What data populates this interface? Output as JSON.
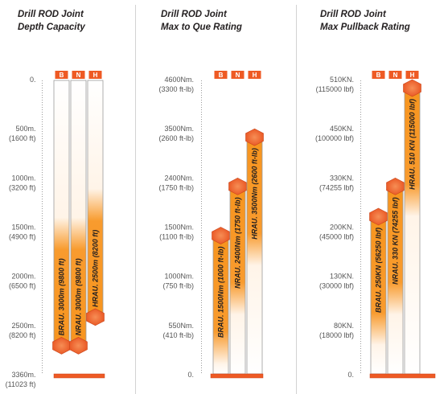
{
  "chart_data": [
    {
      "type": "bar",
      "title": "Drill ROD Joint",
      "subtitle": "Depth Capacity",
      "y_inverted": true,
      "categories": [
        "B",
        "N",
        "H"
      ],
      "values": [
        3000,
        3000,
        2500
      ],
      "bar_labels": [
        "BRAU. 3000m (9800 ft)",
        "NRAU. 3000m (9800 ft)",
        "HRAU. 2500m (8200 ft)"
      ],
      "ylim": [
        0,
        3360
      ],
      "grid": false,
      "y_ticks": [
        {
          "value": 0,
          "label": "0."
        },
        {
          "value": 500,
          "label": "500m.",
          "sublabel": "(1600 ft)"
        },
        {
          "value": 1000,
          "label": "1000m.",
          "sublabel": "(3200 ft)"
        },
        {
          "value": 1500,
          "label": "1500m.",
          "sublabel": "(4900 ft)"
        },
        {
          "value": 2000,
          "label": "2000m.",
          "sublabel": "(6500 ft)"
        },
        {
          "value": 2500,
          "label": "2500m.",
          "sublabel": "(8200 ft)"
        },
        {
          "value": 3360,
          "label": "3360m.",
          "sublabel": "(11023 ft)"
        }
      ]
    },
    {
      "type": "bar",
      "title": "Drill ROD Joint",
      "subtitle": "Max to Que Rating",
      "y_inverted": false,
      "categories": [
        "B",
        "N",
        "H"
      ],
      "values": [
        1500,
        2400,
        3500
      ],
      "bar_labels": [
        "BRAU. 1500Nm (1000 ft-lb)",
        "NRAU. 2400Nm (1750 ft-lb)",
        "HRAU. 3500Nm (2600 ft-lb)"
      ],
      "ylim": [
        0,
        4600
      ],
      "grid": false,
      "y_ticks": [
        {
          "value": 0,
          "label": "0."
        },
        {
          "value": 550,
          "label": "550Nm.",
          "sublabel": "(410 ft-lb)"
        },
        {
          "value": 1000,
          "label": "1000Nm.",
          "sublabel": "(750 ft-lb)"
        },
        {
          "value": 1500,
          "label": "1500Nm.",
          "sublabel": "(1100 ft-lb)"
        },
        {
          "value": 2400,
          "label": "2400Nm.",
          "sublabel": "(1750 ft-lb)"
        },
        {
          "value": 3500,
          "label": "3500Nm.",
          "sublabel": "(2600 ft-lb)"
        },
        {
          "value": 4600,
          "label": "4600Nm.",
          "sublabel": "(3300 ft-lb)"
        }
      ]
    },
    {
      "type": "bar",
      "title": "Drill ROD Joint",
      "subtitle": "Max Pullback Rating",
      "y_inverted": false,
      "categories": [
        "B",
        "N",
        "H"
      ],
      "values": [
        250,
        330,
        510
      ],
      "bar_labels": [
        "BRAU. 250KN (56250 lbf)",
        "NRAU. 330 KN (74255 lbf)",
        "HRAU. 510 KN (115000 lbf)"
      ],
      "ylim": [
        0,
        510
      ],
      "grid": false,
      "y_ticks": [
        {
          "value": 0,
          "label": "0."
        },
        {
          "value": 80,
          "label": "80KN.",
          "sublabel": "(18000 lbf)"
        },
        {
          "value": 130,
          "label": "130KN.",
          "sublabel": "(30000 lbf)"
        },
        {
          "value": 200,
          "label": "200KN.",
          "sublabel": "(45000 lbf)"
        },
        {
          "value": 330,
          "label": "330KN.",
          "sublabel": "(74255 lbf)"
        },
        {
          "value": 450,
          "label": "450KN.",
          "sublabel": "(100000 lbf)"
        },
        {
          "value": 510,
          "label": "510KN.",
          "sublabel": "(115000 lbf)"
        }
      ]
    }
  ],
  "colors": {
    "accent": "#EE5A24",
    "bar_fill": "#F7941D",
    "label_text": "#231F20",
    "tick_text": "#555555"
  }
}
